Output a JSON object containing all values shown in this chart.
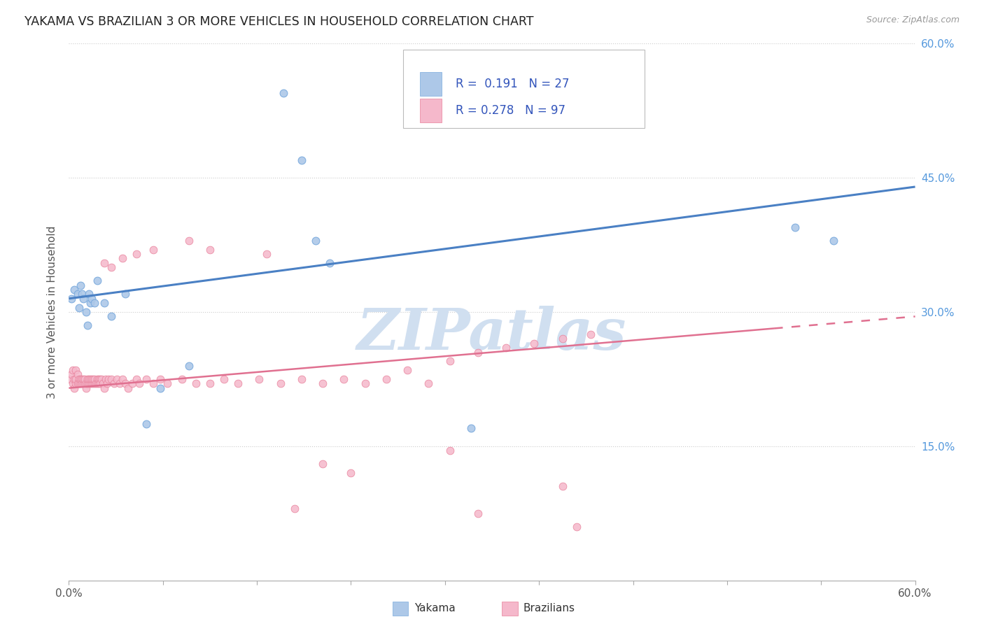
{
  "title": "YAKAMA VS BRAZILIAN 3 OR MORE VEHICLES IN HOUSEHOLD CORRELATION CHART",
  "source": "Source: ZipAtlas.com",
  "ylabel": "3 or more Vehicles in Household",
  "xmin": 0.0,
  "xmax": 0.6,
  "ymin": 0.0,
  "ymax": 0.6,
  "yticks": [
    0.15,
    0.3,
    0.45,
    0.6
  ],
  "ytick_labels": [
    "15.0%",
    "30.0%",
    "45.0%",
    "60.0%"
  ],
  "yakama_R": 0.191,
  "yakama_N": 27,
  "brazilian_R": 0.278,
  "brazilian_N": 97,
  "yakama_color": "#adc8e8",
  "brazilian_color": "#f5b8cb",
  "yakama_edge_color": "#7aaadd",
  "brazilian_edge_color": "#e8809a",
  "trend_yakama_color": "#4a80c4",
  "trend_brazilian_color": "#e07090",
  "watermark_color": "#d0dff0",
  "watermark_text": "ZIPatlas",
  "legend_label_yakama": "Yakama",
  "legend_label_brazilian": "Brazilians",
  "yakama_trend_x0": 0.0,
  "yakama_trend_y0": 0.315,
  "yakama_trend_x1": 0.6,
  "yakama_trend_y1": 0.44,
  "brazilian_trend_x0": 0.0,
  "brazilian_trend_y0": 0.215,
  "brazilian_trend_x1": 0.6,
  "brazilian_trend_y1": 0.295,
  "yakama_x": [
    0.002,
    0.004,
    0.006,
    0.007,
    0.008,
    0.009,
    0.01,
    0.012,
    0.013,
    0.014,
    0.015,
    0.016,
    0.018,
    0.02,
    0.025,
    0.03,
    0.04,
    0.055,
    0.065,
    0.085,
    0.152,
    0.165,
    0.175,
    0.185,
    0.285,
    0.515,
    0.542
  ],
  "yakama_y": [
    0.315,
    0.325,
    0.32,
    0.305,
    0.33,
    0.32,
    0.315,
    0.3,
    0.285,
    0.32,
    0.31,
    0.315,
    0.31,
    0.335,
    0.31,
    0.295,
    0.32,
    0.175,
    0.215,
    0.24,
    0.545,
    0.47,
    0.38,
    0.355,
    0.17,
    0.395,
    0.38
  ],
  "brazilian_x": [
    0.001,
    0.002,
    0.003,
    0.003,
    0.004,
    0.004,
    0.005,
    0.005,
    0.005,
    0.006,
    0.006,
    0.007,
    0.007,
    0.008,
    0.008,
    0.009,
    0.009,
    0.01,
    0.01,
    0.011,
    0.011,
    0.012,
    0.012,
    0.013,
    0.013,
    0.014,
    0.014,
    0.015,
    0.015,
    0.016,
    0.016,
    0.017,
    0.017,
    0.018,
    0.018,
    0.019,
    0.02,
    0.02,
    0.021,
    0.021,
    0.022,
    0.022,
    0.023,
    0.024,
    0.025,
    0.026,
    0.027,
    0.028,
    0.03,
    0.032,
    0.034,
    0.036,
    0.038,
    0.04,
    0.042,
    0.045,
    0.048,
    0.05,
    0.055,
    0.06,
    0.065,
    0.07,
    0.08,
    0.09,
    0.1,
    0.11,
    0.12,
    0.135,
    0.15,
    0.165,
    0.18,
    0.195,
    0.21,
    0.225,
    0.24,
    0.255,
    0.27,
    0.29,
    0.31,
    0.33,
    0.35,
    0.37,
    0.025,
    0.03,
    0.038,
    0.048,
    0.06,
    0.085,
    0.1,
    0.14,
    0.18,
    0.2,
    0.27,
    0.35,
    0.16,
    0.29,
    0.36
  ],
  "brazilian_y": [
    0.225,
    0.23,
    0.22,
    0.235,
    0.215,
    0.225,
    0.22,
    0.225,
    0.235,
    0.22,
    0.23,
    0.225,
    0.22,
    0.22,
    0.225,
    0.225,
    0.22,
    0.22,
    0.225,
    0.22,
    0.225,
    0.215,
    0.22,
    0.22,
    0.225,
    0.22,
    0.225,
    0.22,
    0.225,
    0.22,
    0.225,
    0.22,
    0.225,
    0.22,
    0.225,
    0.22,
    0.225,
    0.22,
    0.22,
    0.225,
    0.225,
    0.22,
    0.225,
    0.22,
    0.215,
    0.225,
    0.22,
    0.225,
    0.225,
    0.22,
    0.225,
    0.22,
    0.225,
    0.22,
    0.215,
    0.22,
    0.225,
    0.22,
    0.225,
    0.22,
    0.225,
    0.22,
    0.225,
    0.22,
    0.22,
    0.225,
    0.22,
    0.225,
    0.22,
    0.225,
    0.22,
    0.225,
    0.22,
    0.225,
    0.235,
    0.22,
    0.245,
    0.255,
    0.26,
    0.265,
    0.27,
    0.275,
    0.355,
    0.35,
    0.36,
    0.365,
    0.37,
    0.38,
    0.37,
    0.365,
    0.13,
    0.12,
    0.145,
    0.105,
    0.08,
    0.075,
    0.06
  ]
}
